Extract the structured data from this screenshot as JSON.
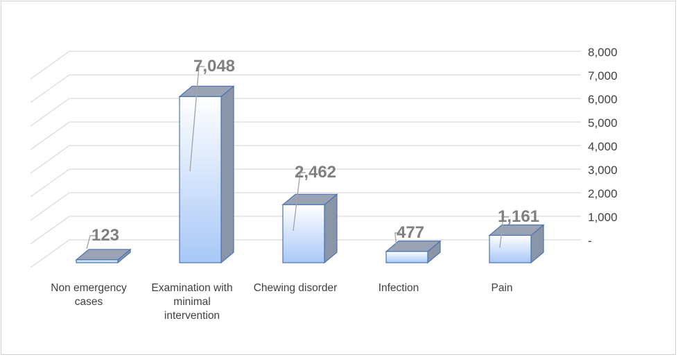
{
  "chart_data": {
    "type": "bar",
    "style": "3d-column",
    "categories": [
      [
        "Non emergency",
        "cases"
      ],
      [
        "Examination with",
        "minimal",
        "intervention"
      ],
      [
        "Chewing disorder"
      ],
      [
        "Infection"
      ],
      [
        "Pain"
      ]
    ],
    "values": [
      123,
      7048,
      2462,
      477,
      1161
    ],
    "data_labels": [
      "123",
      "7,048",
      "2,462",
      "477",
      "1,161"
    ],
    "y_ticks": [
      "-",
      "1,000",
      "2,000",
      "3,000",
      "4,000",
      "5,000",
      "6,000",
      "7,000",
      "8,000"
    ],
    "ylim": [
      0,
      8000
    ],
    "y_axis_side": "right",
    "grid": true,
    "legend": "none",
    "colors": {
      "bar_front_top": "#ffffff",
      "bar_front_bottom": "#a8c8f8",
      "bar_top": "#99a3b3",
      "bar_side": "#8a96a8",
      "bar_edge": "#4a72b0",
      "grid": "#d9d9d9",
      "label": "#808080",
      "tick": "#404040",
      "leader": "#a6a6a6"
    }
  }
}
